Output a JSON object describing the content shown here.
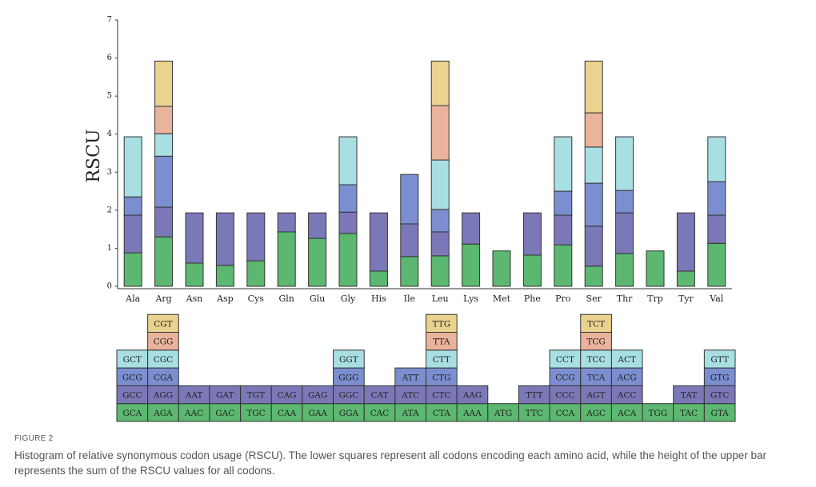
{
  "chart_data": {
    "type": "bar",
    "stacked": true,
    "ylabel": "RSCU",
    "categories": [
      "Ala",
      "Arg",
      "Asn",
      "Asp",
      "Cys",
      "Gln",
      "Glu",
      "Gly",
      "His",
      "Ile",
      "Leu",
      "Lys",
      "Met",
      "Phe",
      "Pro",
      "Ser",
      "Thr",
      "Trp",
      "Tyr",
      "Val"
    ],
    "ylim": [
      0,
      7
    ],
    "yticks": [
      0,
      1,
      2,
      3,
      4,
      5,
      6,
      7
    ],
    "series": [
      {
        "color": "#5cb870",
        "values": [
          0.88,
          1.3,
          0.61,
          0.55,
          0.67,
          1.43,
          1.26,
          1.39,
          0.4,
          0.78,
          0.8,
          1.11,
          0.93,
          0.82,
          1.09,
          0.53,
          0.86,
          0.93,
          0.4,
          1.13
        ]
      },
      {
        "color": "#7b78b8",
        "values": [
          0.99,
          0.78,
          1.32,
          1.38,
          1.26,
          0.5,
          0.67,
          0.56,
          1.53,
          0.86,
          0.63,
          0.82,
          null,
          1.11,
          0.78,
          1.05,
          1.07,
          null,
          1.53,
          0.74
        ]
      },
      {
        "color": "#7b8fd0",
        "values": [
          0.48,
          1.34,
          null,
          null,
          null,
          null,
          null,
          0.72,
          null,
          1.3,
          0.59,
          null,
          null,
          null,
          0.63,
          1.13,
          0.59,
          null,
          null,
          0.88
        ]
      },
      {
        "color": "#a8dfe3",
        "values": [
          1.58,
          0.59,
          null,
          null,
          null,
          null,
          null,
          1.26,
          null,
          null,
          1.3,
          null,
          null,
          null,
          1.43,
          0.95,
          1.41,
          null,
          null,
          1.18
        ]
      },
      {
        "color": "#eab39c",
        "values": [
          null,
          0.72,
          null,
          null,
          null,
          null,
          null,
          null,
          null,
          null,
          1.43,
          null,
          null,
          null,
          null,
          0.9,
          null,
          null,
          null,
          null
        ]
      },
      {
        "color": "#ead38e",
        "values": [
          null,
          1.19,
          null,
          null,
          null,
          null,
          null,
          null,
          null,
          null,
          1.17,
          null,
          null,
          null,
          null,
          1.36,
          null,
          null,
          null,
          null
        ]
      }
    ],
    "codons": [
      [
        "GCA",
        "GCC",
        "GCG",
        "GCT"
      ],
      [
        "AGA",
        "AGG",
        "CGA",
        "CGC",
        "CGG",
        "CGT"
      ],
      [
        "AAC",
        "AAT"
      ],
      [
        "GAC",
        "GAT"
      ],
      [
        "TGC",
        "TGT"
      ],
      [
        "CAA",
        "CAG"
      ],
      [
        "GAA",
        "GAG"
      ],
      [
        "GGA",
        "GGC",
        "GGG",
        "GGT"
      ],
      [
        "CAC",
        "CAT"
      ],
      [
        "ATA",
        "ATC",
        "ATT"
      ],
      [
        "CTA",
        "CTC",
        "CTG",
        "CTT",
        "TTA",
        "TTG"
      ],
      [
        "AAA",
        "AAG"
      ],
      [
        "ATG"
      ],
      [
        "TTC",
        "TTT"
      ],
      [
        "CCA",
        "CCC",
        "CCG",
        "CCT"
      ],
      [
        "AGC",
        "AGT",
        "TCA",
        "TCC",
        "TCG",
        "TCT"
      ],
      [
        "ACA",
        "ACC",
        "ACG",
        "ACT"
      ],
      [
        "TGG"
      ],
      [
        "TAC",
        "TAT"
      ],
      [
        "GTA",
        "GTC",
        "GTG",
        "GTT"
      ]
    ]
  },
  "figure_label": "FIGURE 2",
  "caption": "Histogram of relative synonymous codon usage (RSCU). The lower squares represent all codons encoding each amino acid, while the height of the upper bar represents the sum of the RSCU values for all codons."
}
